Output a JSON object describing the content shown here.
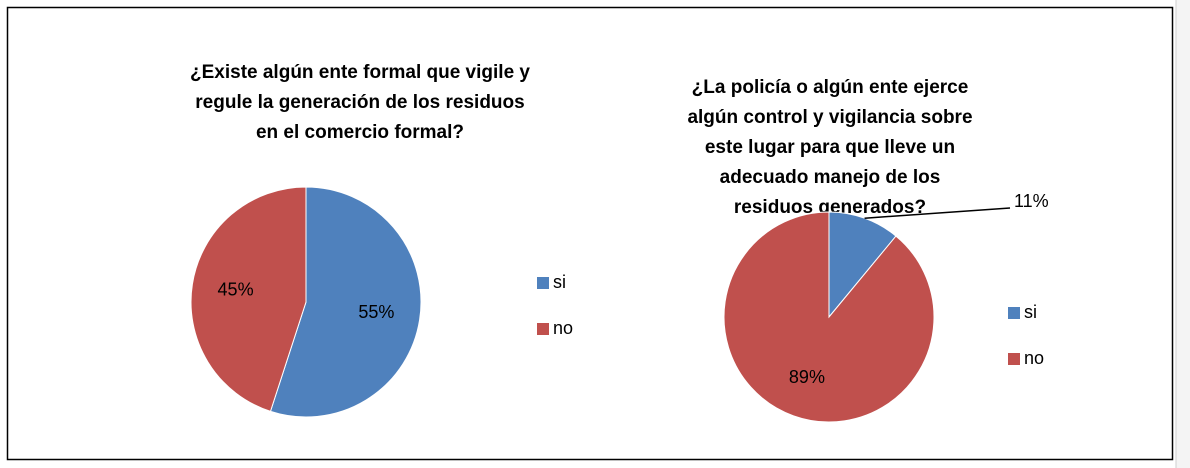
{
  "chart_data": [
    {
      "type": "pie",
      "title": [
        "¿Existe algún ente formal que vigile y",
        "regule la generación de los residuos",
        "en el comercio formal?"
      ],
      "categories": [
        "si",
        "no"
      ],
      "values": [
        55,
        45
      ],
      "value_labels": [
        "55%",
        "45%"
      ],
      "colors": [
        "#4f81bd",
        "#c0504d"
      ],
      "legend": "right"
    },
    {
      "type": "pie",
      "title": [
        "¿La policía o algún ente ejerce",
        "algún control y vigilancia sobre",
        "este lugar para que lleve un",
        "adecuado manejo de los",
        "residuos generados?"
      ],
      "categories": [
        "si",
        "no"
      ],
      "values": [
        11,
        89
      ],
      "value_labels": [
        "11%",
        "89%"
      ],
      "colors": [
        "#4f81bd",
        "#c0504d"
      ],
      "legend": "right"
    }
  ]
}
